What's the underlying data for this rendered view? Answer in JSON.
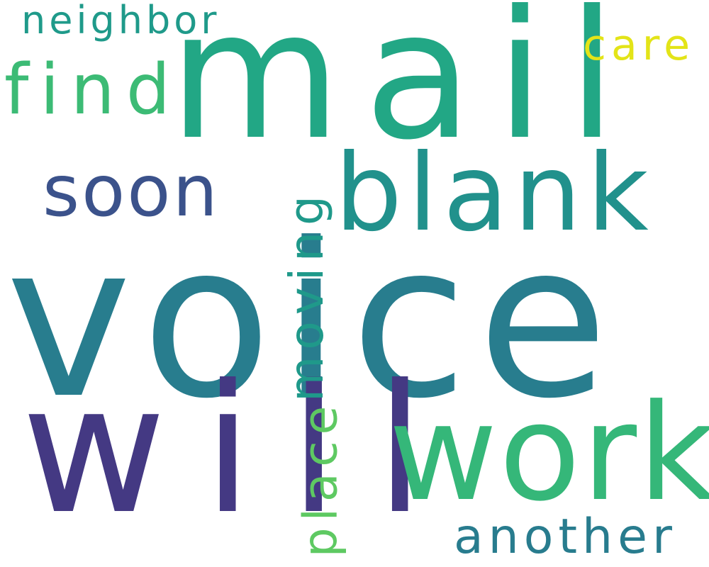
{
  "words": {
    "voice": {
      "text": "voice",
      "color": "#287d8e"
    },
    "mail": {
      "text": "mail",
      "color": "#22a785"
    },
    "will": {
      "text": "will",
      "color": "#443983"
    },
    "work": {
      "text": "work",
      "color": "#35b779"
    },
    "blank": {
      "text": "blank",
      "color": "#21918c"
    },
    "soon": {
      "text": "soon",
      "color": "#3b528b"
    },
    "find": {
      "text": "find",
      "color": "#3cbb75"
    },
    "neighbor": {
      "text": "neighbor",
      "color": "#1f9a8a"
    },
    "care": {
      "text": "care",
      "color": "#e3e418"
    },
    "another": {
      "text": "another",
      "color": "#287c8e"
    },
    "moving": {
      "text": "moving",
      "color": "#1f998a"
    },
    "place": {
      "text": "place",
      "color": "#5ec962"
    }
  }
}
